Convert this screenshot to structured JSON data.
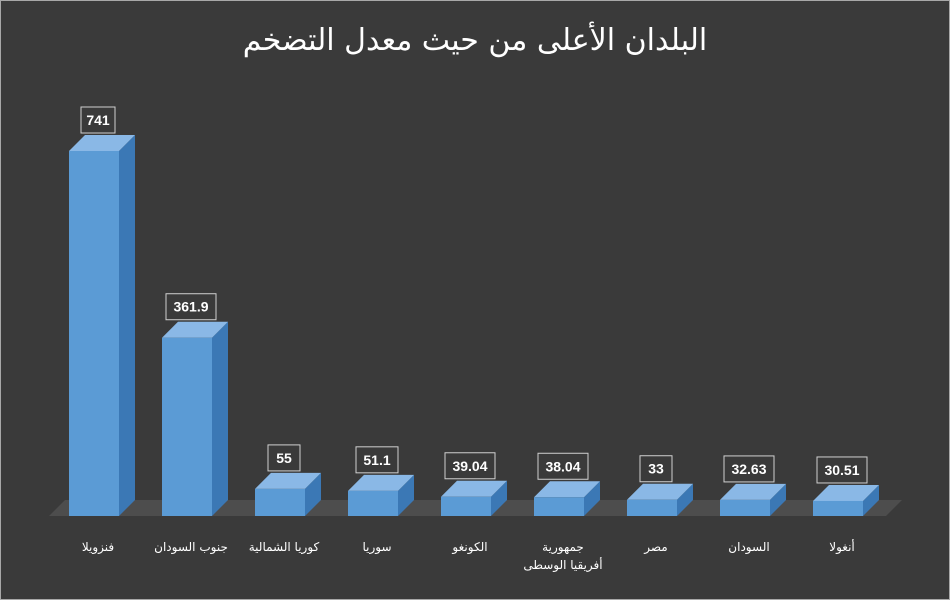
{
  "chart_data": {
    "type": "bar",
    "title": "البلدان الأعلى من حيث معدل التضخم",
    "xlabel": "",
    "ylabel": "",
    "categories": [
      "فنزويلا",
      "جنوب السودان",
      "كوريا الشمالية",
      "سوريا",
      "الكونغو",
      "جمهورية أفريقيا الوسطى",
      "مصر",
      "السودان",
      "أنغولا"
    ],
    "category_lines": [
      [
        "فنزويلا"
      ],
      [
        "جنوب السودان"
      ],
      [
        "كوريا الشمالية"
      ],
      [
        "سوريا"
      ],
      [
        "الكونغو"
      ],
      [
        "جمهورية",
        "أفريقيا الوسطى"
      ],
      [
        "مصر"
      ],
      [
        "السودان"
      ],
      [
        "أنغولا"
      ]
    ],
    "values": [
      741,
      361.9,
      55,
      51.1,
      39.04,
      38.04,
      33,
      32.63,
      30.51
    ],
    "value_labels": [
      "741",
      "361.9",
      "55",
      "51.1",
      "39.04",
      "38.04",
      "33",
      "32.63",
      "30.51"
    ],
    "ylim": [
      0,
      800
    ],
    "grid": false,
    "legend": "none",
    "colors": {
      "background": "#3a3a3a",
      "bar_front": "#5b9bd5",
      "bar_side": "#3b78b5",
      "bar_top": "#8ab8e6",
      "floor": "#4d4d4d",
      "text": "#ffffff"
    }
  }
}
